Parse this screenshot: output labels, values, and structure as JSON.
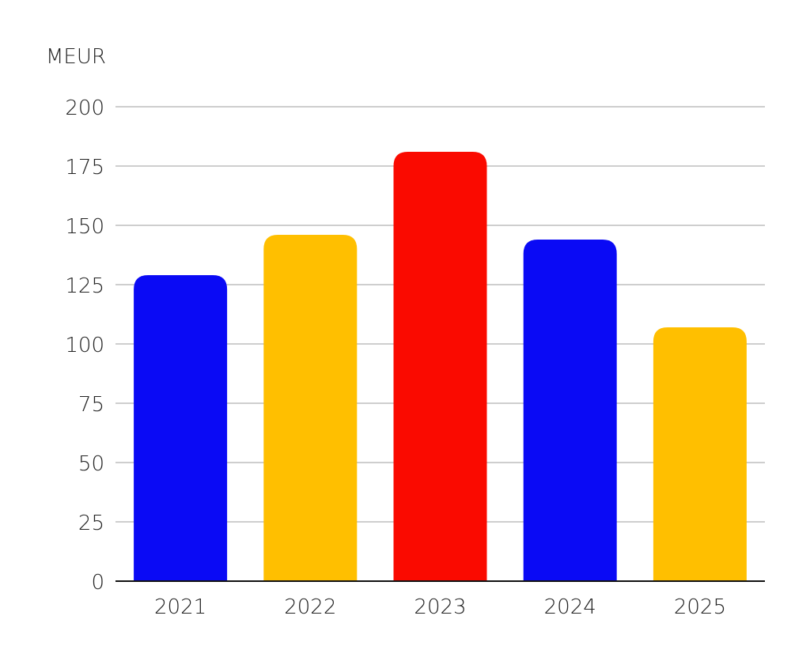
{
  "chart_data": {
    "type": "bar",
    "unit_label": "MEUR",
    "categories": [
      "2021",
      "2022",
      "2023",
      "2024",
      "2025"
    ],
    "values": [
      129,
      146,
      181,
      144,
      107
    ],
    "bar_colors": [
      "#0a0af5",
      "#ffbf00",
      "#fa0a00",
      "#0a0af5",
      "#ffbf00"
    ],
    "y_ticks": [
      0,
      25,
      50,
      75,
      100,
      125,
      150,
      175,
      200
    ],
    "ylim": [
      0,
      200
    ],
    "grid": true,
    "legend": false
  }
}
